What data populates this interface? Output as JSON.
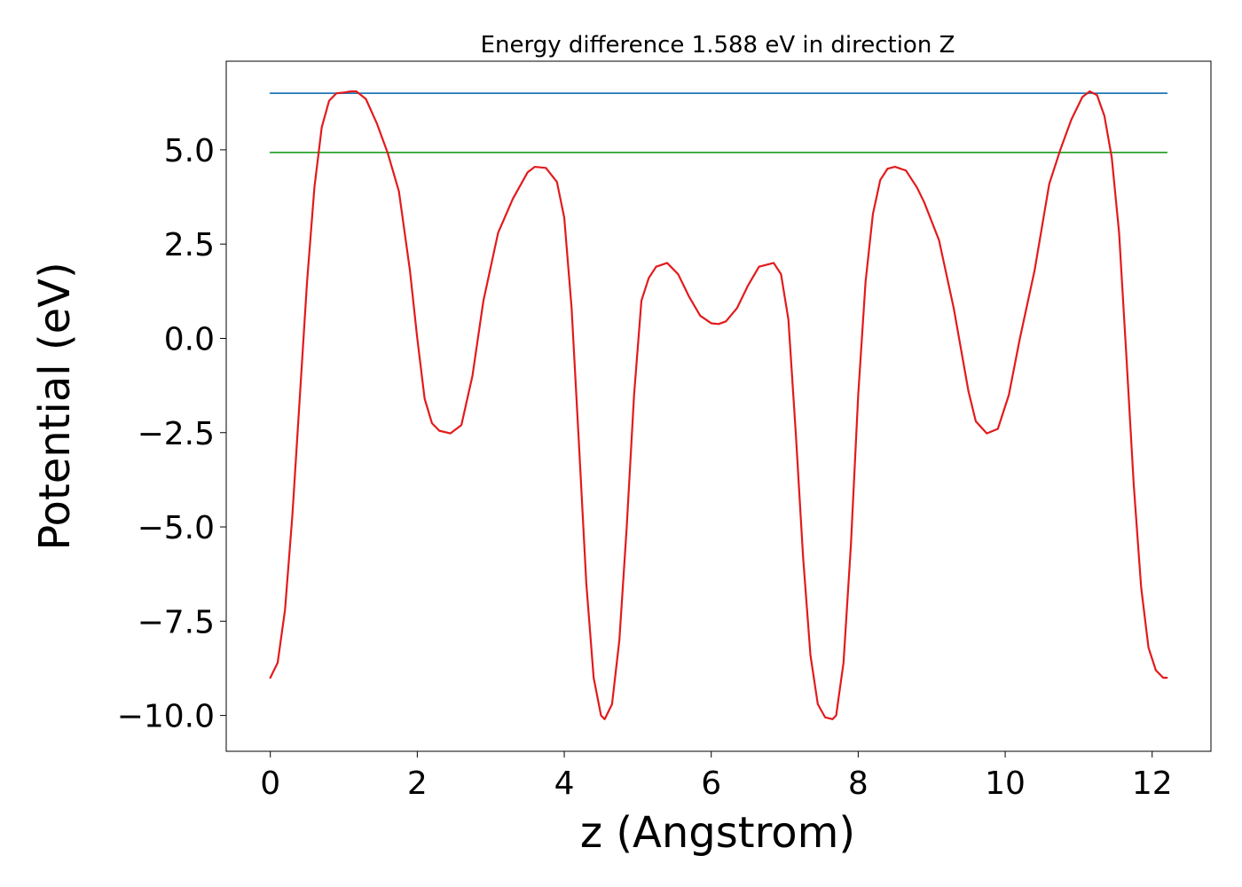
{
  "chart_data": {
    "type": "line",
    "title": "Energy difference 1.588 eV in direction Z",
    "xlabel": "z (Angstrom)",
    "ylabel": "Potential (eV)",
    "xlim": [
      -0.6,
      12.8
    ],
    "ylim": [
      -10.95,
      7.35
    ],
    "x_ticks": [
      0,
      2,
      4,
      6,
      8,
      10,
      12
    ],
    "x_tick_labels": [
      "0",
      "2",
      "4",
      "6",
      "8",
      "10",
      "12"
    ],
    "y_ticks": [
      5.0,
      2.5,
      0.0,
      -2.5,
      -5.0,
      -7.5,
      -10.0
    ],
    "y_tick_labels": [
      "5.0",
      "2.5",
      "0.0",
      "−2.5",
      "−5.0",
      "−7.5",
      "−10.0"
    ],
    "grid": false,
    "series": [
      {
        "color": "#1f77b4",
        "x": [
          0.0,
          12.2
        ],
        "y": [
          6.5,
          6.5
        ]
      },
      {
        "color": "#2ca02c",
        "x": [
          0.0,
          12.2
        ],
        "y": [
          4.93,
          4.93
        ]
      },
      {
        "color": "#e31a1c",
        "x": [
          0.0,
          0.1,
          0.2,
          0.3,
          0.4,
          0.5,
          0.6,
          0.7,
          0.8,
          0.9,
          1.0,
          1.1,
          1.17,
          1.3,
          1.45,
          1.6,
          1.75,
          1.9,
          2.0,
          2.1,
          2.2,
          2.3,
          2.45,
          2.6,
          2.75,
          2.9,
          3.1,
          3.3,
          3.5,
          3.6,
          3.75,
          3.9,
          4.0,
          4.1,
          4.2,
          4.3,
          4.4,
          4.5,
          4.55,
          4.65,
          4.75,
          4.85,
          4.95,
          5.05,
          5.15,
          5.25,
          5.4,
          5.55,
          5.7,
          5.85,
          6.0,
          6.1,
          6.2,
          6.35,
          6.5,
          6.65,
          6.85,
          6.95,
          7.05,
          7.15,
          7.25,
          7.35,
          7.45,
          7.55,
          7.65,
          7.7,
          7.8,
          7.9,
          8.0,
          8.1,
          8.2,
          8.3,
          8.4,
          8.5,
          8.65,
          8.8,
          8.9,
          9.1,
          9.3,
          9.5,
          9.6,
          9.75,
          9.9,
          10.05,
          10.2,
          10.4,
          10.6,
          10.75,
          10.9,
          11.05,
          11.15,
          11.25,
          11.35,
          11.45,
          11.55,
          11.65,
          11.75,
          11.85,
          11.95,
          12.05,
          12.15,
          12.2
        ],
        "y": [
          -9.0,
          -8.6,
          -7.2,
          -4.7,
          -1.6,
          1.5,
          4.0,
          5.6,
          6.3,
          6.5,
          6.52,
          6.55,
          6.55,
          6.35,
          5.7,
          4.9,
          3.9,
          1.8,
          0.0,
          -1.6,
          -2.25,
          -2.45,
          -2.52,
          -2.3,
          -1.0,
          1.0,
          2.8,
          3.7,
          4.4,
          4.55,
          4.52,
          4.15,
          3.2,
          0.8,
          -2.8,
          -6.5,
          -9.0,
          -10.0,
          -10.1,
          -9.7,
          -8.0,
          -5.0,
          -1.5,
          1.0,
          1.6,
          1.9,
          2.0,
          1.7,
          1.1,
          0.6,
          0.4,
          0.38,
          0.45,
          0.8,
          1.4,
          1.9,
          2.0,
          1.7,
          0.5,
          -2.5,
          -5.8,
          -8.4,
          -9.7,
          -10.05,
          -10.1,
          -10.0,
          -8.6,
          -5.5,
          -1.5,
          1.5,
          3.3,
          4.2,
          4.5,
          4.55,
          4.45,
          4.0,
          3.6,
          2.6,
          0.8,
          -1.4,
          -2.2,
          -2.52,
          -2.4,
          -1.5,
          0.0,
          1.8,
          4.1,
          5.0,
          5.8,
          6.4,
          6.55,
          6.45,
          5.9,
          4.8,
          2.8,
          -0.5,
          -3.9,
          -6.6,
          -8.2,
          -8.8,
          -9.0,
          -9.0
        ]
      }
    ]
  }
}
